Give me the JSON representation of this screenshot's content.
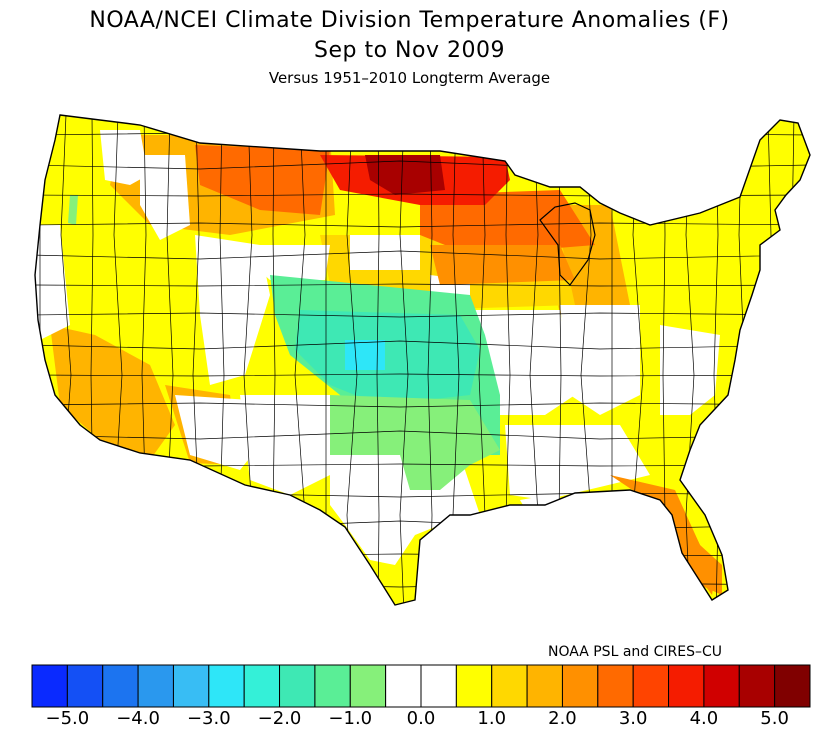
{
  "header": {
    "title_line1": "NOAA/NCEI Climate Division Temperature Anomalies (F)",
    "title_line2": "Sep to Nov 2009",
    "subtitle": "Versus 1951–2010 Longterm Average"
  },
  "credit": "NOAA PSL and CIRES–CU",
  "legend": {
    "units": "F",
    "min": -5.0,
    "max": 5.0,
    "step": 0.5,
    "colors": [
      "#0a2aff",
      "#1450f5",
      "#1c74f0",
      "#2a98ee",
      "#38bdf4",
      "#2ee6f8",
      "#34f0d8",
      "#3ee8b4",
      "#5aee96",
      "#86f07a",
      "#ffffff",
      "#ffffff",
      "#ffff00",
      "#ffd800",
      "#ffb400",
      "#ff9000",
      "#ff6a00",
      "#ff4400",
      "#f51c00",
      "#d00000",
      "#a80000",
      "#800000"
    ],
    "tick_labels": [
      "−5.0",
      "−4.0",
      "−3.0",
      "−2.0",
      "−1.0",
      "0.0",
      "1.0",
      "2.0",
      "3.0",
      "4.0",
      "5.0"
    ],
    "tick_values": [
      -5,
      -4,
      -3,
      -2,
      -1,
      0,
      1,
      2,
      3,
      4,
      5
    ]
  },
  "map": {
    "region": "contiguous United States, climate divisions",
    "regions": [
      {
        "name": "northern-plains-max",
        "anomaly": 5.0,
        "color": "#a80000"
      },
      {
        "name": "north-dakota-minnesota",
        "anomaly": 4.0,
        "color": "#f51c00"
      },
      {
        "name": "montana-north",
        "anomaly": 3.0,
        "color": "#ff6a00"
      },
      {
        "name": "upper-great-lakes",
        "anomaly": 2.5,
        "color": "#ff9000"
      },
      {
        "name": "northern-rockies",
        "anomaly": 1.5,
        "color": "#ffb400"
      },
      {
        "name": "mid-upper-midwest",
        "anomaly": 1.0,
        "color": "#ffd800"
      },
      {
        "name": "west-and-east",
        "anomaly": 0.7,
        "color": "#ffff00"
      },
      {
        "name": "southwest",
        "anomaly": 1.7,
        "color": "#ffb400"
      },
      {
        "name": "florida-peninsula",
        "anomaly": 2.3,
        "color": "#ff9000"
      },
      {
        "name": "central-plains",
        "anomaly": -1.2,
        "color": "#5aee96"
      },
      {
        "name": "kansas-nebraska",
        "anomaly": -1.8,
        "color": "#3ee8b4"
      },
      {
        "name": "southern-plains",
        "anomaly": -0.8,
        "color": "#86f07a"
      },
      {
        "name": "western-kansas-core",
        "anomaly": -2.5,
        "color": "#2ee6f8"
      },
      {
        "name": "washington-cascade",
        "anomaly": -1.0,
        "color": "#86f07a"
      }
    ]
  }
}
